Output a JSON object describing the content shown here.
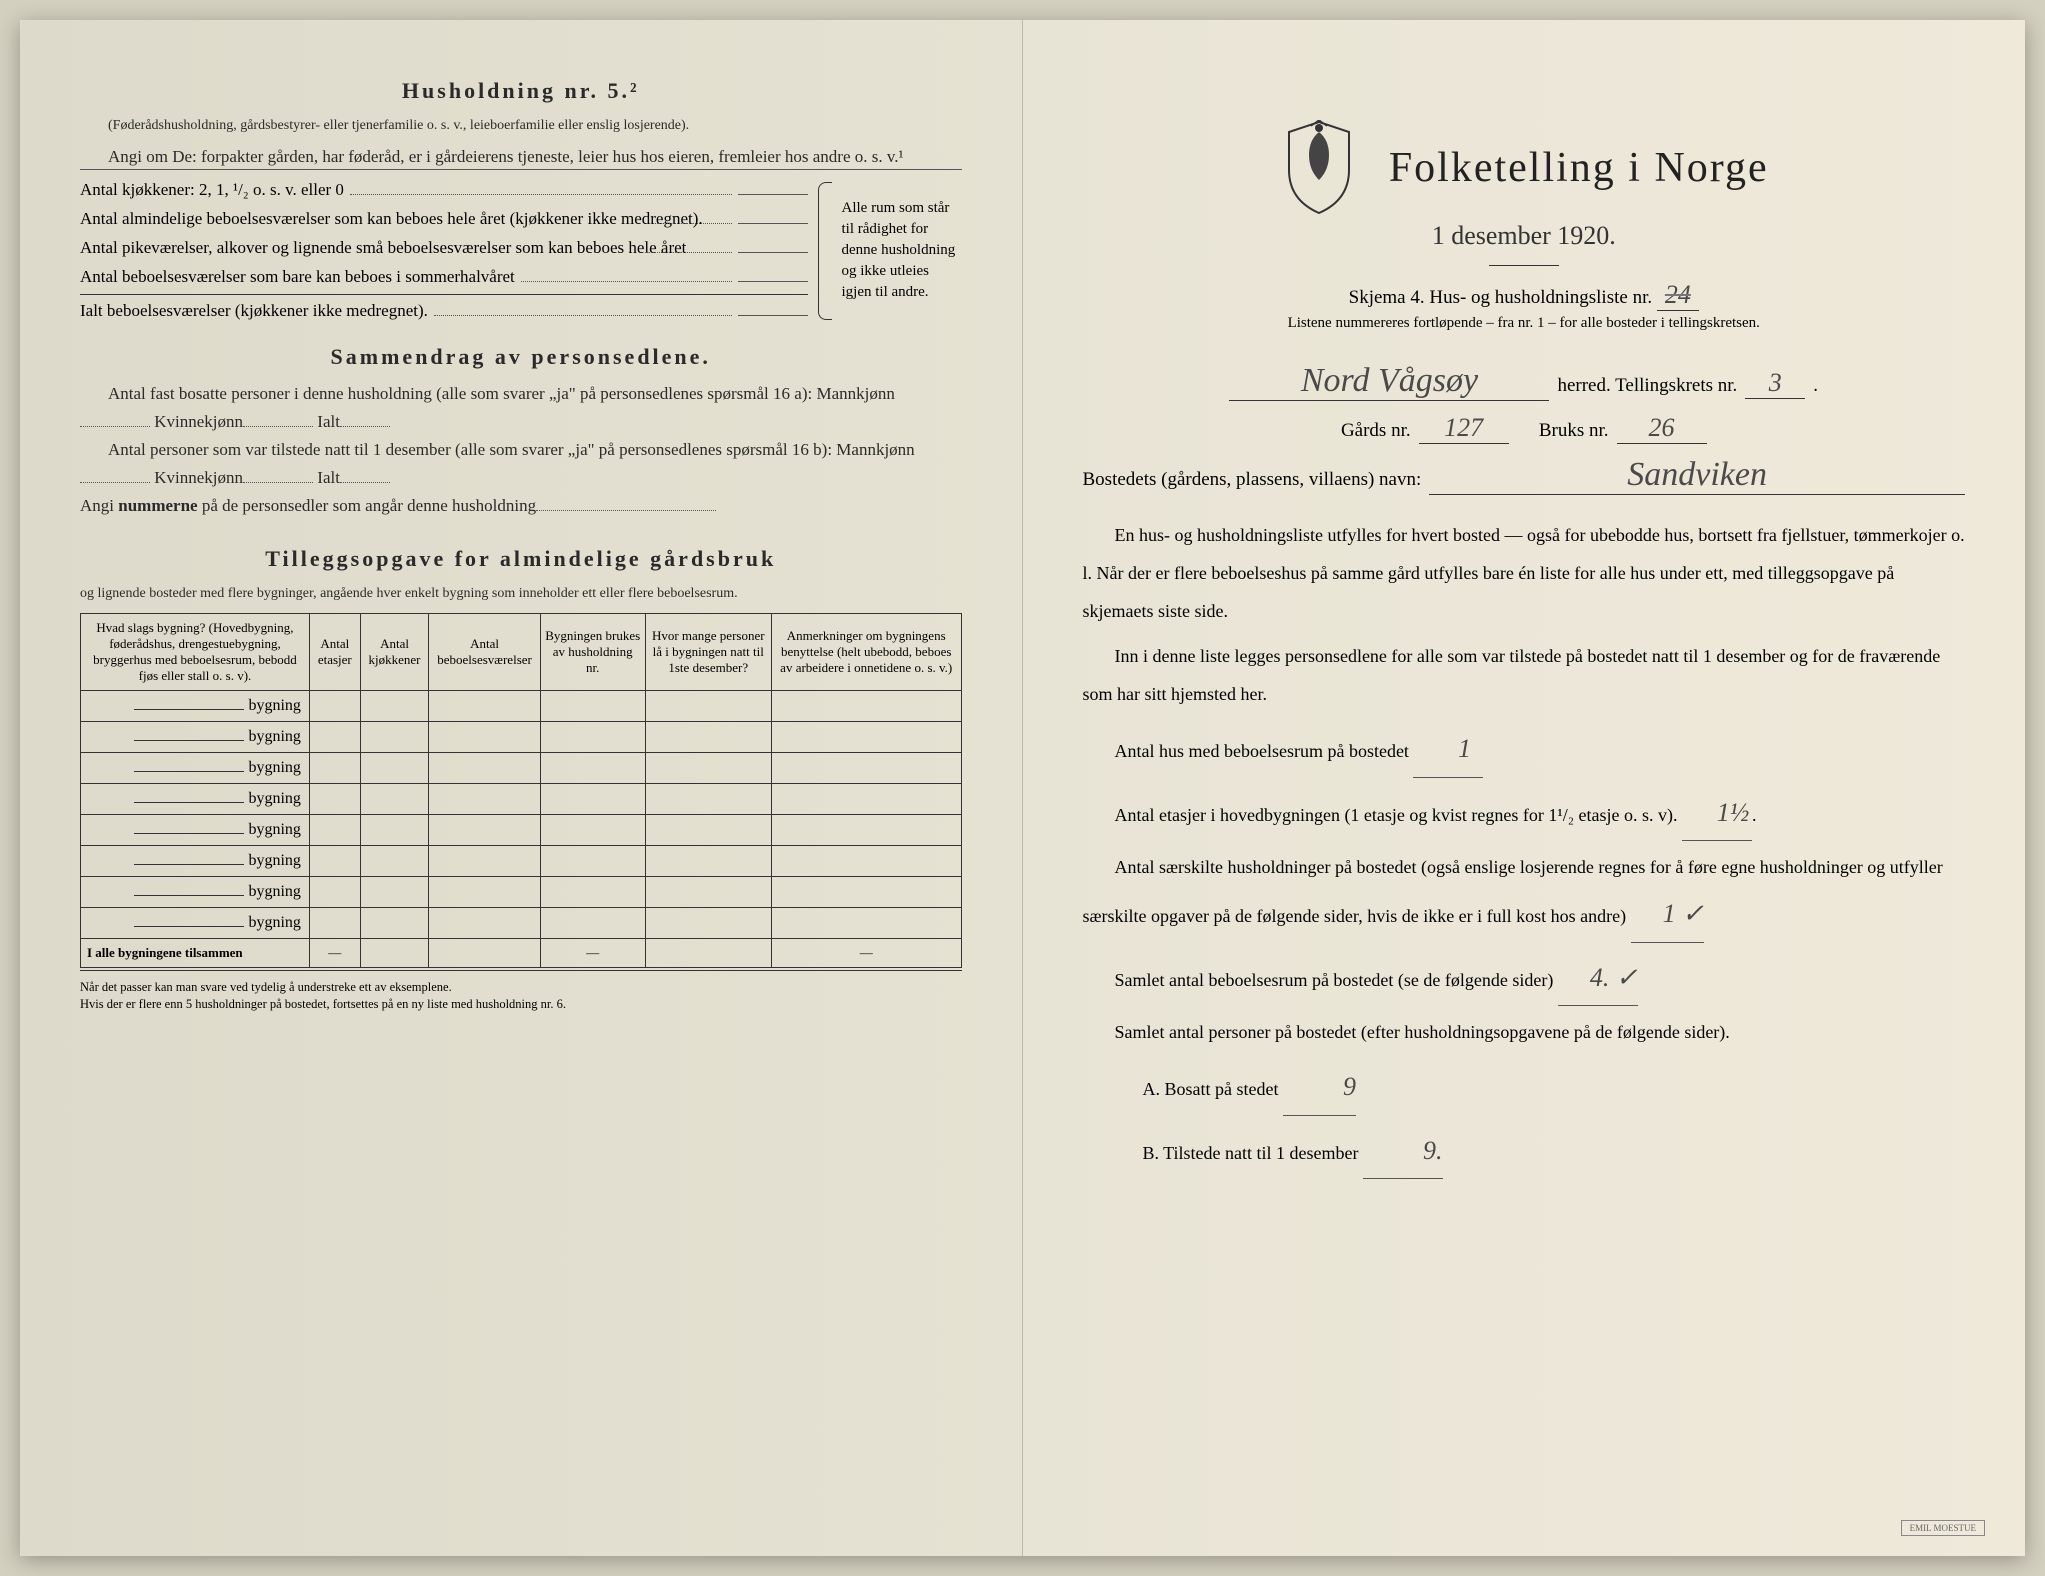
{
  "colors": {
    "paper": "#e8e4d4",
    "paper_left": "#e2decf",
    "text": "#2a2a2a",
    "handwriting": "#4a4a4a",
    "border": "#333333"
  },
  "left": {
    "h5_title": "Husholdning nr. 5.²",
    "h5_paren": "(Føderådshusholdning, gårdsbestyrer- eller tjenerfamilie o. s. v., leieboerfamilie eller enslig losjerende).",
    "h5_angi": "Angi om De:  forpakter gården, har føderåd, er i gårdeierens tjeneste, leier hus hos eieren, fremleier hos andre o. s. v.¹",
    "kitchens_label": "Antal kjøkkener: 2, 1, ¹/₂ o. s. v. eller 0",
    "rooms1": "Antal almindelige beboelsesværelser som kan beboes hele året (kjøkkener ikke medregnet).",
    "rooms2": "Antal pikeværelser, alkover og lignende små beboelsesværelser som kan beboes hele året",
    "rooms3": "Antal beboelsesværelser som bare kan beboes i sommerhalvåret",
    "rooms_total": "Ialt beboelsesværelser (kjøkkener ikke medregnet).",
    "brace_text": "Alle rum som står til rådighet for denne husholdning og ikke utleies igjen til andre.",
    "summary_title": "Sammendrag av personsedlene.",
    "summary_line1": "Antal fast bosatte personer i denne husholdning (alle som svarer „ja\" på personsedlenes spørsmål 16 a): Mannkjønn",
    "kvinne": "Kvinnekjønn",
    "ialt": "Ialt",
    "summary_line2": "Antal personer som var tilstede natt til 1 desember (alle som svarer „ja\" på personsedlenes spørsmål 16 b): Mannkjønn",
    "summary_line3_a": "Angi ",
    "summary_line3_b": "nummerne",
    "summary_line3_c": " på de personsedler som angår denne husholdning",
    "tillegg_title": "Tilleggsopgave for almindelige gårdsbruk",
    "tillegg_sub": "og lignende bosteder med flere bygninger, angående hver enkelt bygning som inneholder ett eller flere beboelsesrum.",
    "table": {
      "headers": [
        "Hvad slags bygning?\n(Hovedbygning, føderådshus, drengestuebygning, bryggerhus med beboelsesrum, bebodd fjøs eller stall o. s. v).",
        "Antal etasjer",
        "Antal kjøkkener",
        "Antal beboelsesværelser",
        "Bygningen brukes av husholdning nr.",
        "Hvor mange personer lå i bygningen natt til 1ste desember?",
        "Anmerkninger om bygningens benyttelse (helt ubebodd, beboes av arbeidere i onnetidene o. s. v.)"
      ],
      "bygning_label": "bygning",
      "row_count": 8,
      "footer_label": "I alle bygningene tilsammen",
      "dash": "—"
    },
    "footnote1": "Når det passer kan man svare ved tydelig å understreke ett av eksemplene.",
    "footnote2": "Hvis der er flere enn 5 husholdninger på bostedet, fortsettes på en ny liste med husholdning nr. 6."
  },
  "right": {
    "main_title": "Folketelling i Norge",
    "date": "1 desember 1920.",
    "skjema_label": "Skjema 4.  Hus- og husholdningsliste nr.",
    "skjema_nr": "24",
    "skjema_note": "Listene nummereres fortløpende – fra nr. 1 – for alle bosteder i tellingskretsen.",
    "herred_value": "Nord Vågsøy",
    "herred_label": "herred.   Tellingskrets nr.",
    "krets_nr": "3",
    "gards_label": "Gårds nr.",
    "gards_nr": "127",
    "bruks_label": "Bruks nr.",
    "bruks_nr": "26",
    "bosted_label": "Bostedets (gårdens, plassens, villaens) navn:",
    "bosted_value": "Sandviken",
    "para1": "En hus- og husholdningsliste utfylles for hvert bosted — også for ubebodde hus, bortsett fra fjellstuer, tømmerkojer o. l.  Når der er flere beboelseshus på samme gård utfylles bare én liste for alle hus under ett, med tilleggsopgave på skjemaets siste side.",
    "para2": "Inn i denne liste legges personsedlene for alle som var tilstede på bostedet natt til 1 desember og for de fraværende som har sitt hjemsted her.",
    "q1_label": "Antal hus med beboelsesrum på bostedet",
    "q1_value": "1",
    "q2_label_a": "Antal etasjer i hovedbygningen (1 etasje og kvist regnes for 1¹/₂ etasje o. s. v).",
    "q2_value": "1½",
    "q3_label": "Antal særskilte husholdninger på bostedet (også enslige losjerende regnes for å føre egne husholdninger og utfyller særskilte opgaver på de følgende sider, hvis de ikke er i full kost hos andre)",
    "q3_value": "1 ✓",
    "q4_label": "Samlet antal beboelsesrum på bostedet (se de følgende sider)",
    "q4_value": "4. ✓",
    "q5_label": "Samlet antal personer på bostedet (efter husholdningsopgavene på de følgende sider).",
    "qA_label": "A.  Bosatt på stedet",
    "qA_value": "9",
    "qB_label": "B.  Tilstede natt til 1 desember",
    "qB_value": "9.",
    "printer": "EMIL MOESTUE"
  }
}
